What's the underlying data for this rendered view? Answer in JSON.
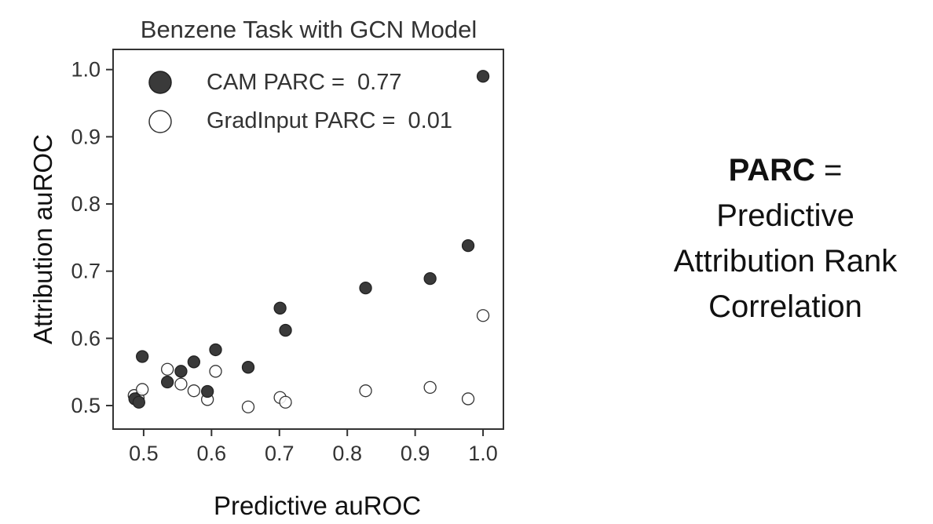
{
  "chart_data": {
    "type": "scatter",
    "title": "Benzene Task with GCN Model",
    "xlabel": "Predictive auROC",
    "ylabel": "Attribution auROC",
    "xlim": [
      0.455,
      1.03
    ],
    "ylim": [
      0.465,
      1.03
    ],
    "xticks": [
      "0.5",
      "0.6",
      "0.7",
      "0.8",
      "0.9",
      "1.0"
    ],
    "yticks": [
      "0.5",
      "0.6",
      "0.7",
      "0.8",
      "0.9",
      "1.0"
    ],
    "grid": false,
    "legend_position": "top-left",
    "series": [
      {
        "name": "CAM PARC =  0.77",
        "marker": "filled",
        "color": "#3a3a3a",
        "points": [
          [
            0.487,
            0.51
          ],
          [
            0.493,
            0.505
          ],
          [
            0.498,
            0.573
          ],
          [
            0.535,
            0.535
          ],
          [
            0.555,
            0.551
          ],
          [
            0.574,
            0.565
          ],
          [
            0.594,
            0.521
          ],
          [
            0.606,
            0.583
          ],
          [
            0.654,
            0.557
          ],
          [
            0.701,
            0.645
          ],
          [
            0.709,
            0.612
          ],
          [
            0.827,
            0.675
          ],
          [
            0.922,
            0.689
          ],
          [
            0.978,
            0.738
          ],
          [
            1.0,
            0.99
          ]
        ]
      },
      {
        "name": "GradInput PARC =  0.01",
        "marker": "open",
        "color": "#3a3a3a",
        "points": [
          [
            0.486,
            0.515
          ],
          [
            0.492,
            0.511
          ],
          [
            0.498,
            0.524
          ],
          [
            0.535,
            0.554
          ],
          [
            0.555,
            0.532
          ],
          [
            0.574,
            0.522
          ],
          [
            0.594,
            0.509
          ],
          [
            0.606,
            0.551
          ],
          [
            0.654,
            0.498
          ],
          [
            0.701,
            0.512
          ],
          [
            0.709,
            0.505
          ],
          [
            0.827,
            0.522
          ],
          [
            0.922,
            0.527
          ],
          [
            0.978,
            0.51
          ],
          [
            1.0,
            0.634
          ]
        ]
      }
    ]
  },
  "definition": {
    "term": "PARC",
    "equals": " =",
    "lines": [
      "Predictive",
      "Attribution Rank",
      "Correlation"
    ]
  }
}
